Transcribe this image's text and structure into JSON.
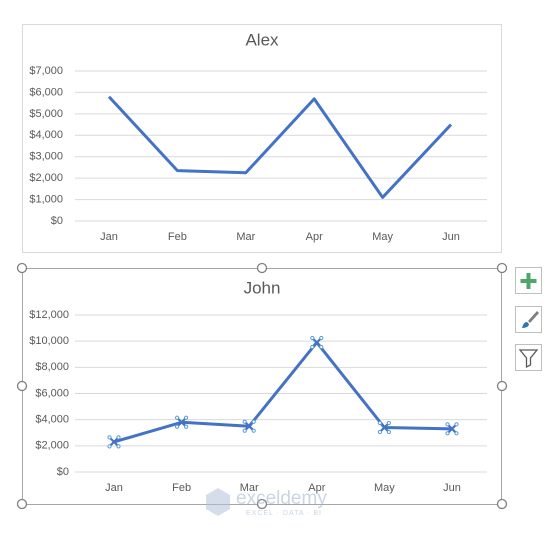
{
  "chart_data": [
    {
      "type": "line",
      "title": "Alex",
      "categories": [
        "Jan",
        "Feb",
        "Mar",
        "Apr",
        "May",
        "Jun"
      ],
      "values": [
        5800,
        2350,
        2250,
        5700,
        1100,
        4500
      ],
      "color": "#4472c4",
      "markers": false,
      "grid": true,
      "ylim": [
        0,
        7000
      ],
      "yticks": [
        {
          "value": 0,
          "label": "$0"
        },
        {
          "value": 1000,
          "label": "$1,000"
        },
        {
          "value": 2000,
          "label": "$2,000"
        },
        {
          "value": 3000,
          "label": "$3,000"
        },
        {
          "value": 4000,
          "label": "$4,000"
        },
        {
          "value": 5000,
          "label": "$5,000"
        },
        {
          "value": 6000,
          "label": "$6,000"
        },
        {
          "value": 7000,
          "label": "$7,000"
        }
      ]
    },
    {
      "type": "line",
      "title": "John",
      "categories": [
        "Jan",
        "Feb",
        "Mar",
        "Apr",
        "May",
        "Jun"
      ],
      "values": [
        2300,
        3800,
        3500,
        9900,
        3400,
        3300
      ],
      "color": "#4472c4",
      "markers": true,
      "grid": true,
      "ylim": [
        0,
        12000
      ],
      "yticks": [
        {
          "value": 0,
          "label": "$0"
        },
        {
          "value": 2000,
          "label": "$2,000"
        },
        {
          "value": 4000,
          "label": "$4,000"
        },
        {
          "value": 6000,
          "label": "$6,000"
        },
        {
          "value": 8000,
          "label": "$8,000"
        },
        {
          "value": 10000,
          "label": "$10,000"
        },
        {
          "value": 12000,
          "label": "$12,000"
        }
      ]
    }
  ],
  "watermark": {
    "name": "exceldemy",
    "tagline": "EXCEL · DATA · BI"
  }
}
